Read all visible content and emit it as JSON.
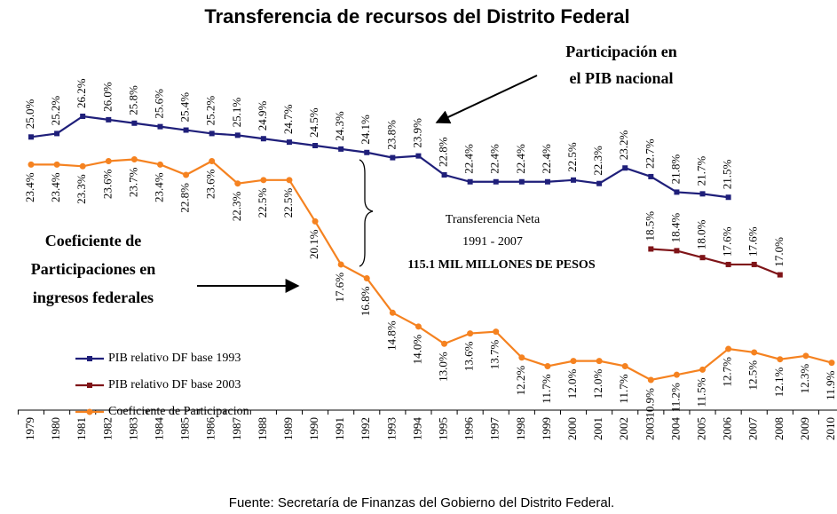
{
  "chart_data": {
    "type": "line",
    "title": "Transferencia de recursos del Distrito Federal",
    "source": "Fuente: Secretaría de Finanzas del Gobierno  del Distrito Federal.",
    "annotations": {
      "pib": [
        "Participación en",
        "el PIB nacional"
      ],
      "coeficiente": [
        "Coeficiente de",
        "Participaciones en",
        "ingresos federales"
      ],
      "transferencia": [
        "Transferencia Neta",
        "1991 - 2007",
        "115.1 MIL MILLONES DE PESOS"
      ]
    },
    "categories": [
      "1979",
      "1980",
      "1981",
      "1982",
      "1983",
      "1984",
      "1985",
      "1986",
      "1987",
      "1988",
      "1989",
      "1990",
      "1991",
      "1992",
      "1993",
      "1994",
      "1995",
      "1996",
      "1997",
      "1998",
      "1999",
      "2000",
      "2001",
      "2002",
      "2003",
      "2004",
      "2005",
      "2006",
      "2007",
      "2008",
      "2009",
      "2010"
    ],
    "legend": "left",
    "series": [
      {
        "name": "PIB relativo DF base 1993",
        "color": "#1f1f7a",
        "label_side": "above",
        "values": [
          25.0,
          25.2,
          26.2,
          26.0,
          25.8,
          25.6,
          25.4,
          25.2,
          25.1,
          24.9,
          24.7,
          24.5,
          24.3,
          24.1,
          23.8,
          23.9,
          22.8,
          22.4,
          22.4,
          22.4,
          22.4,
          22.5,
          22.3,
          23.2,
          22.7,
          21.8,
          21.7,
          21.5,
          null,
          null,
          null,
          null
        ],
        "value_labels": [
          "25.0%",
          "25.2%",
          "26.2%",
          "26.0%",
          "25.8%",
          "25.6%",
          "25.4%",
          "25.2%",
          "25.1%",
          "24.9%",
          "24.7%",
          "24.5%",
          "24.3%",
          "24.1%",
          "23.8%",
          "23.9%",
          "22.8%",
          "22.4%",
          "22.4%",
          "22.4%",
          "22.4%",
          "22.5%",
          "22.3%",
          "23.2%",
          "22.7%",
          "21.8%",
          "21.7%",
          "21.5%",
          null,
          null,
          null,
          null
        ]
      },
      {
        "name": "PIB relativo DF base 2003",
        "color": "#7f1418",
        "label_side": "above",
        "values": [
          null,
          null,
          null,
          null,
          null,
          null,
          null,
          null,
          null,
          null,
          null,
          null,
          null,
          null,
          null,
          null,
          null,
          null,
          null,
          null,
          null,
          null,
          null,
          null,
          18.5,
          18.4,
          18.0,
          17.6,
          17.6,
          17.0,
          null,
          null
        ],
        "value_labels": [
          null,
          null,
          null,
          null,
          null,
          null,
          null,
          null,
          null,
          null,
          null,
          null,
          null,
          null,
          null,
          null,
          null,
          null,
          null,
          null,
          null,
          null,
          null,
          null,
          "18.5%",
          "18.4%",
          "18.0%",
          "17.6%",
          "17.6%",
          "17.0%",
          null,
          null
        ]
      },
      {
        "name": "Coeficiente de Participacion",
        "color": "#f58220",
        "label_side": "below",
        "values": [
          23.4,
          23.4,
          23.3,
          23.6,
          23.7,
          23.4,
          22.8,
          23.6,
          22.3,
          22.5,
          22.5,
          20.1,
          17.6,
          16.8,
          14.8,
          14.0,
          13.0,
          13.6,
          13.7,
          12.2,
          11.7,
          12.0,
          12.0,
          11.7,
          10.9,
          11.2,
          11.5,
          12.7,
          12.5,
          12.1,
          12.3,
          11.9
        ],
        "value_labels": [
          "23.4%",
          "23.4%",
          "23.3%",
          "23.6%",
          "23.7%",
          "23.4%",
          "22.8%",
          "23.6%",
          "22.3%",
          "22.5%",
          "22.5%",
          "20.1%",
          "17.6%",
          "16.8%",
          "14.8%",
          "14.0%",
          "13.0%",
          "13.6%",
          "13.7%",
          "12.2%",
          "11.7%",
          "12.0%",
          "12.0%",
          "11.7%",
          "10.9%",
          "11.2%",
          "11.5%",
          "12.7%",
          "12.5%",
          "12.1%",
          "12.3%",
          "11.9%"
        ]
      }
    ]
  }
}
